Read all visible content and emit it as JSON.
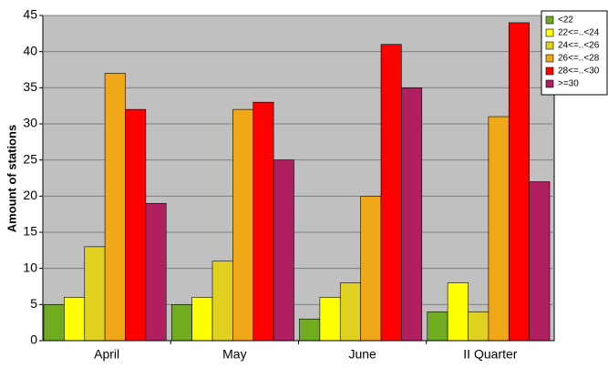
{
  "chart_data": {
    "type": "bar",
    "ylabel": "Amount of stations",
    "categories": [
      "April",
      "May",
      "June",
      "II Quarter"
    ],
    "series": [
      {
        "name": "<22",
        "color": "#70ac20",
        "values": [
          5,
          5,
          3,
          4
        ]
      },
      {
        "name": "22<=..<24",
        "color": "#ffff00",
        "values": [
          6,
          6,
          6,
          8
        ]
      },
      {
        "name": "24<=..<26",
        "color": "#e0d020",
        "values": [
          13,
          11,
          8,
          4
        ]
      },
      {
        "name": "26<=..<28",
        "color": "#f0a818",
        "values": [
          37,
          32,
          20,
          31
        ]
      },
      {
        "name": "28<=..<30",
        "color": "#ff0000",
        "values": [
          32,
          33,
          41,
          44
        ]
      },
      {
        "name": ">=30",
        "color": "#b02060",
        "values": [
          19,
          25,
          35,
          22
        ]
      }
    ],
    "ylim": [
      0,
      45
    ],
    "yticks": [
      0,
      5,
      10,
      15,
      20,
      25,
      30,
      35,
      40,
      45
    ],
    "grid": true,
    "legend": "top-right"
  }
}
